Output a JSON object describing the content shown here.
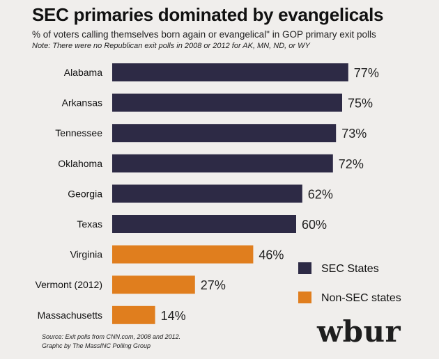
{
  "chart_data": {
    "type": "bar",
    "orientation": "horizontal",
    "title": "SEC primaries dominated by evangelicals",
    "subtitle": "% of voters calling themselves born again or evangelical\" in GOP primary exit polls",
    "note": "Note: There were no Republican exit polls in 2008 or 2012 for AK, MN, ND, or WY",
    "categories": [
      "Alabama",
      "Arkansas",
      "Tennessee",
      "Oklahoma",
      "Georgia",
      "Texas",
      "Virginia",
      "Vermont (2012)",
      "Massachusetts"
    ],
    "values": [
      77,
      75,
      73,
      72,
      62,
      60,
      46,
      27,
      14
    ],
    "value_labels": [
      "77%",
      "75%",
      "73%",
      "72%",
      "62%",
      "60%",
      "46%",
      "27%",
      "14%"
    ],
    "groups": [
      "SEC States",
      "SEC States",
      "SEC States",
      "SEC States",
      "SEC States",
      "SEC States",
      "Non-SEC states",
      "Non-SEC states",
      "Non-SEC states"
    ],
    "legend": [
      {
        "name": "SEC States",
        "color": "#2d2a45"
      },
      {
        "name": "Non-SEC states",
        "color": "#e07e1e"
      }
    ],
    "legend_position": "bottom-right",
    "xlim": [
      0,
      100
    ],
    "grid": false
  },
  "source_lines": [
    "Source: Exit polls from CNN.com, 2008 and 2012.",
    "Graphc by The MassINC Polling Group"
  ],
  "logo_text": "wbur"
}
